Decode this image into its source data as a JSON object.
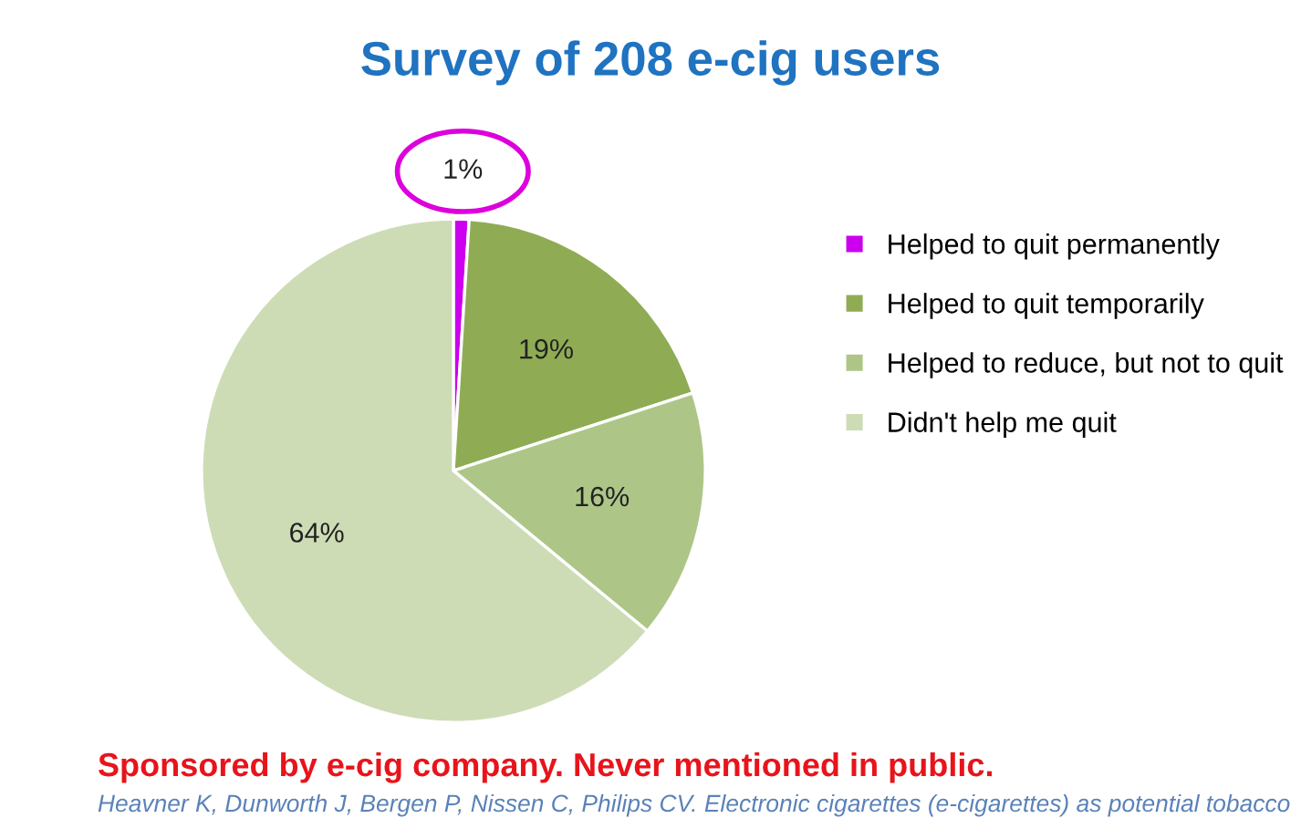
{
  "chart_data": {
    "type": "pie",
    "title": "Survey of 208 e-cig users",
    "categories": [
      "Helped to quit permanently",
      "Helped to quit temporarily",
      "Helped to reduce, but not to quit",
      "Didn't help me quit"
    ],
    "values": [
      1,
      19,
      16,
      64
    ],
    "colors": [
      "#cc00ee",
      "#8fac55",
      "#adc687",
      "#cddcb5"
    ],
    "legend": "right",
    "value_labels": [
      "1%",
      "19%",
      "16%",
      "64%"
    ],
    "annotations": [
      "Sponsored by e-cig company. Never mentioned in public.",
      "Heavner K, Dunworth J, Bergen P, Nissen C, Philips CV. Electronic cigarettes (e-cigarettes) as potential tobacco"
    ]
  }
}
